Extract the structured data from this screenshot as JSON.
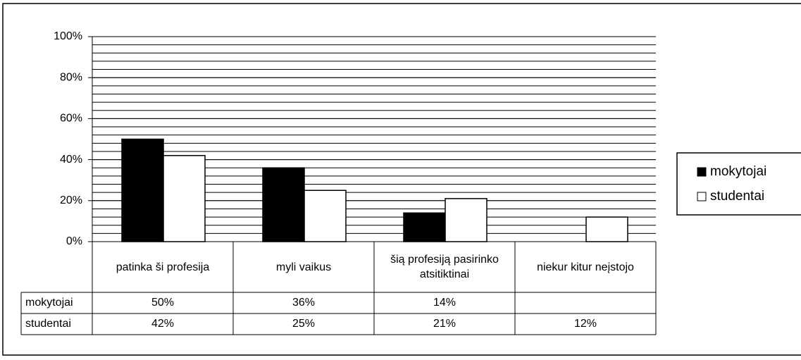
{
  "chart_data": {
    "type": "bar",
    "categories": [
      "patinka ši profesija",
      "myli vaikus",
      "šią profesiją pasirinko atsitiktinai",
      "niekur kitur neįstojo"
    ],
    "series": [
      {
        "name": "mokytojai",
        "color": "#000000",
        "values": [
          50,
          36,
          14,
          null
        ],
        "value_labels": [
          "50%",
          "36%",
          "14%",
          null
        ]
      },
      {
        "name": "studentai",
        "color": "#ffffff",
        "values": [
          42,
          25,
          21,
          12
        ],
        "value_labels": [
          "42%",
          "25%",
          "21%",
          "12%"
        ]
      }
    ],
    "ylim": [
      0,
      100
    ],
    "yticks": [
      {
        "value": 0,
        "label": "0%"
      },
      {
        "value": 20,
        "label": "20%"
      },
      {
        "value": 40,
        "label": "40%"
      },
      {
        "value": 60,
        "label": "60%"
      },
      {
        "value": 80,
        "label": "80%"
      },
      {
        "value": 100,
        "label": "100%"
      }
    ],
    "minor_grid_step": 4,
    "grid": true,
    "legend": "right",
    "data_table": true
  }
}
